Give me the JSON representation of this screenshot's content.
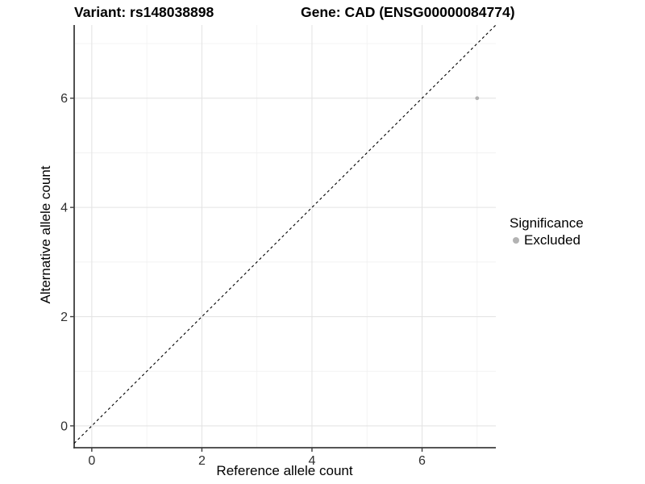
{
  "figure": {
    "title_left": "Variant: rs148038898",
    "title_right": "Gene: CAD (ENSG00000084774)"
  },
  "chart_data": {
    "type": "scatter",
    "title": "Variant: rs148038898    Gene: CAD (ENSG00000084774)",
    "xlabel": "Reference allele count",
    "ylabel": "Alternative allele count",
    "xlim": [
      -0.32,
      7.34
    ],
    "ylim": [
      -0.4,
      7.34
    ],
    "x_ticks": [
      0,
      2,
      4,
      6
    ],
    "y_ticks": [
      0,
      2,
      4,
      6
    ],
    "x_minor_ticks": [
      1,
      3,
      5,
      7
    ],
    "y_minor_ticks": [
      1,
      3,
      5,
      7
    ],
    "grid": "major+minor",
    "reference_line": {
      "style": "dashed",
      "equation": "y = x",
      "color": "#000000"
    },
    "series": [
      {
        "name": "Excluded",
        "color": "#b3b3b3",
        "points": [
          {
            "x": 7,
            "y": 6
          }
        ]
      }
    ],
    "legend": {
      "title": "Significance",
      "position": "right",
      "items": [
        {
          "label": "Excluded",
          "color": "#b3b3b3"
        }
      ]
    },
    "colors": {
      "axis_line": "#3d3d3d",
      "grid_major": "#e4e4e4",
      "grid_minor": "#f0f0f0",
      "tick_label": "#303030",
      "background": "#ffffff"
    }
  }
}
